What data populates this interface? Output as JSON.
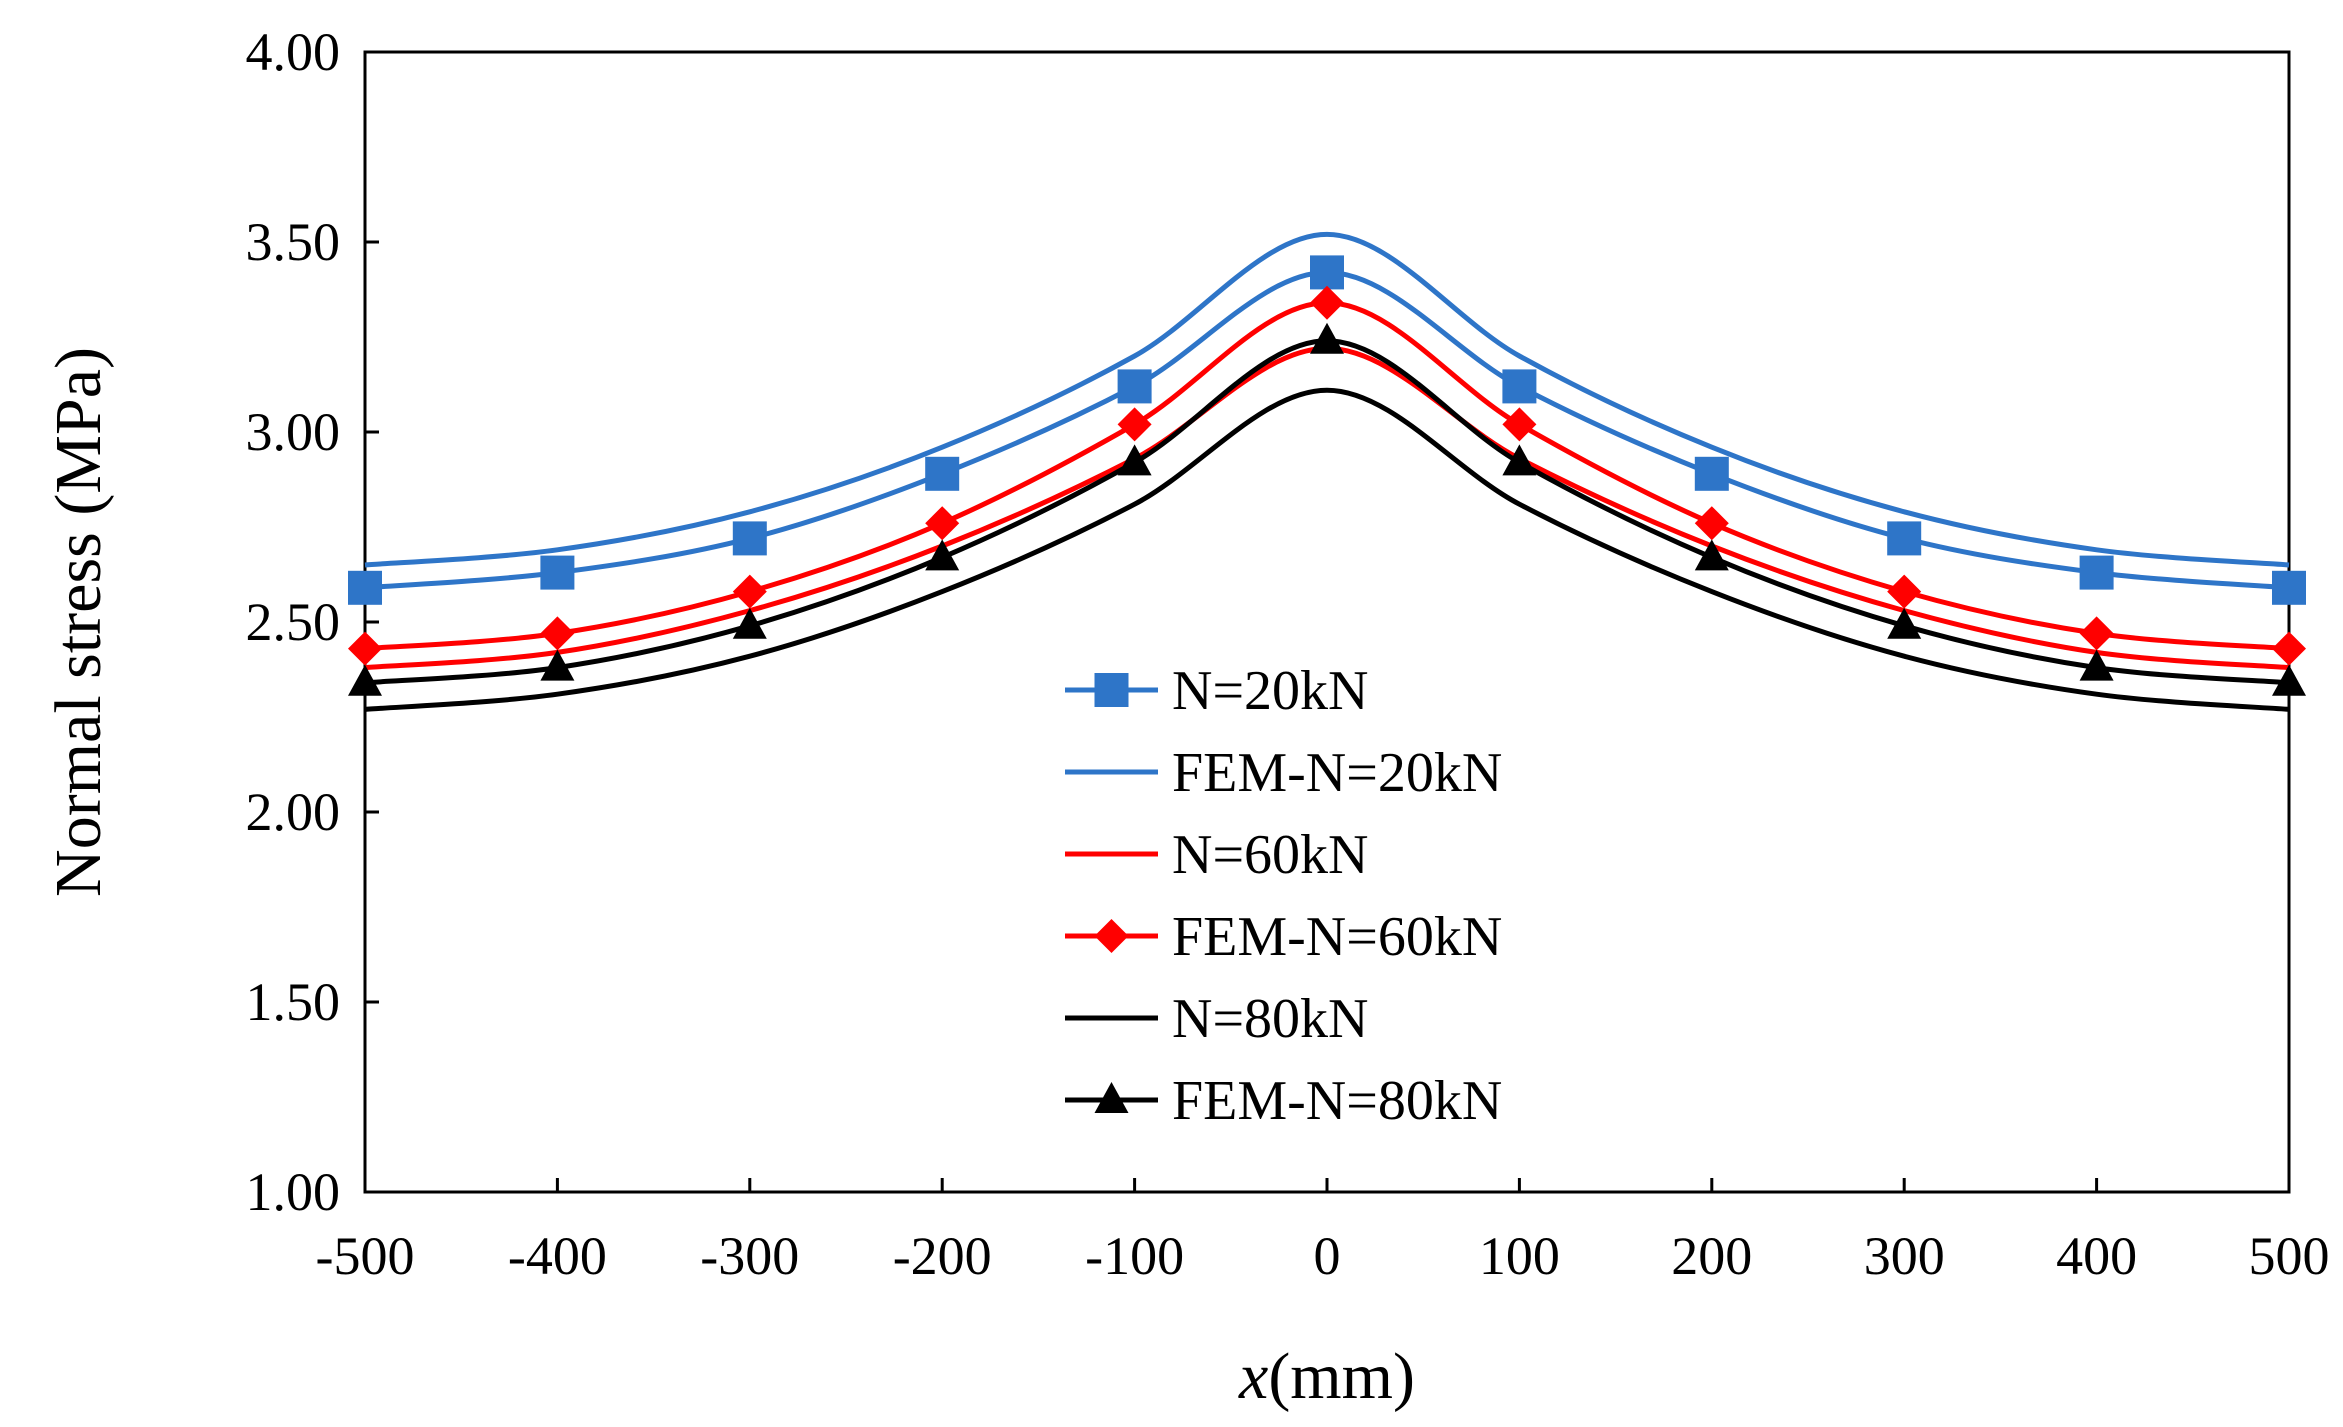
{
  "chart_data": {
    "type": "line",
    "title": "",
    "xlabel": "x",
    "xlabel_unit": "(mm)",
    "ylabel": "Normal stress (MPa)",
    "xlim": [
      -500,
      500
    ],
    "ylim": [
      1.0,
      4.0
    ],
    "xticks": [
      -500,
      -400,
      -300,
      -200,
      -100,
      0,
      100,
      200,
      300,
      400,
      500
    ],
    "yticks": [
      "1.00",
      "1.50",
      "2.00",
      "2.50",
      "3.00",
      "3.50",
      "4.00"
    ],
    "grid": false,
    "legend_position": "center",
    "series": [
      {
        "name": "N=20kN",
        "color": "#2e75c8",
        "line": true,
        "marker": "square",
        "x": [
          -500,
          -400,
          -300,
          -200,
          -100,
          0,
          100,
          200,
          300,
          400,
          500
        ],
        "y": [
          2.59,
          2.63,
          2.72,
          2.89,
          3.12,
          3.42,
          3.12,
          2.89,
          2.72,
          2.63,
          2.59
        ]
      },
      {
        "name": "FEM-N=20kN",
        "color": "#2e75c8",
        "line": true,
        "marker": "none",
        "x": [
          -500,
          -400,
          -300,
          -200,
          -100,
          0,
          100,
          200,
          300,
          400,
          500
        ],
        "y": [
          2.65,
          2.69,
          2.79,
          2.96,
          3.2,
          3.52,
          3.2,
          2.96,
          2.79,
          2.69,
          2.65
        ]
      },
      {
        "name": "N=60kN",
        "color": "#ff0000",
        "line": true,
        "marker": "none",
        "x": [
          -500,
          -400,
          -300,
          -200,
          -100,
          0,
          100,
          200,
          300,
          400,
          500
        ],
        "y": [
          2.38,
          2.42,
          2.53,
          2.7,
          2.93,
          3.22,
          2.93,
          2.7,
          2.53,
          2.42,
          2.38
        ]
      },
      {
        "name": "FEM-N=60kN",
        "color": "#ff0000",
        "line": true,
        "marker": "diamond",
        "x": [
          -500,
          -400,
          -300,
          -200,
          -100,
          0,
          100,
          200,
          300,
          400,
          500
        ],
        "y": [
          2.43,
          2.47,
          2.58,
          2.76,
          3.02,
          3.34,
          3.02,
          2.76,
          2.58,
          2.47,
          2.43
        ]
      },
      {
        "name": "N=80kN",
        "color": "#000000",
        "line": true,
        "marker": "none",
        "x": [
          -500,
          -400,
          -300,
          -200,
          -100,
          0,
          100,
          200,
          300,
          400,
          500
        ],
        "y": [
          2.27,
          2.31,
          2.41,
          2.58,
          2.81,
          3.11,
          2.81,
          2.58,
          2.41,
          2.31,
          2.27
        ]
      },
      {
        "name": "FEM-N=80kN",
        "color": "#000000",
        "line": true,
        "marker": "triangle",
        "x": [
          -500,
          -400,
          -300,
          -200,
          -100,
          0,
          100,
          200,
          300,
          400,
          500
        ],
        "y": [
          2.34,
          2.38,
          2.49,
          2.67,
          2.92,
          3.24,
          2.92,
          2.67,
          2.49,
          2.38,
          2.34
        ]
      }
    ]
  }
}
